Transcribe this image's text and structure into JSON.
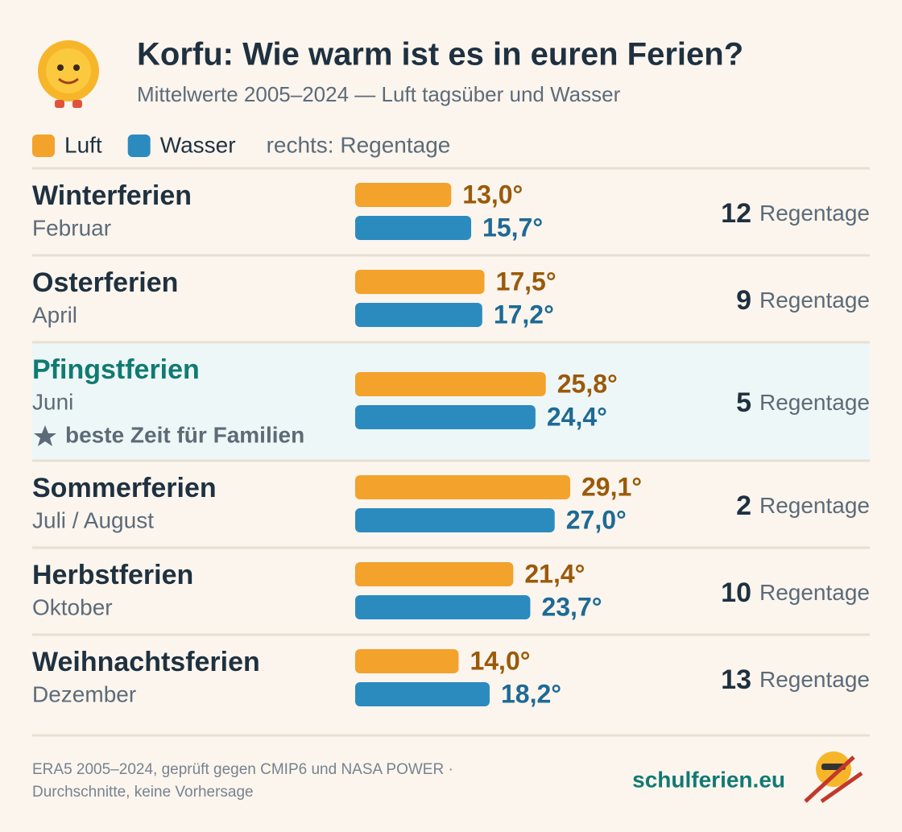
{
  "chart_data": {
    "type": "bar",
    "title": "Korfu: Wie warm ist es in euren Ferien?",
    "subtitle": "Mittelwerte 2005–2024 — Luft tagsüber und Wasser",
    "legend_note": "rechts: Regentage",
    "categories": [
      "Winterferien",
      "Osterferien",
      "Pfingstferien",
      "Sommerferien",
      "Herbstferien",
      "Weihnachtsferien"
    ],
    "months": [
      "Februar",
      "April",
      "Juni",
      "Juli / August",
      "Oktober",
      "Dezember"
    ],
    "notes": [
      null,
      null,
      "beste Zeit für Familien",
      null,
      null,
      null
    ],
    "series": [
      {
        "name": "Luft",
        "color": "#f3a22c",
        "label_color": "#9a5a0a",
        "values": [
          13.0,
          17.5,
          25.8,
          29.1,
          21.4,
          14.0
        ],
        "value_labels": [
          "13,0°",
          "17,5°",
          "25,8°",
          "29,1°",
          "21,4°",
          "14,0°"
        ]
      },
      {
        "name": "Wasser",
        "color": "#2b8bbf",
        "label_color": "#1e6a94",
        "values": [
          15.7,
          17.2,
          24.4,
          27.0,
          23.7,
          18.2
        ],
        "value_labels": [
          "15,7°",
          "17,2°",
          "24,4°",
          "27,0°",
          "23,7°",
          "18,2°"
        ]
      }
    ],
    "rain_days": [
      12,
      9,
      5,
      2,
      10,
      13
    ],
    "rain_label": "Regentage",
    "source": [
      "ERA5 2005–2024, geprüft gegen CMIP6 und NASA POWER ·",
      "Durchschnitte, keine Vorhersage"
    ],
    "brand": "schulferien.eu"
  }
}
